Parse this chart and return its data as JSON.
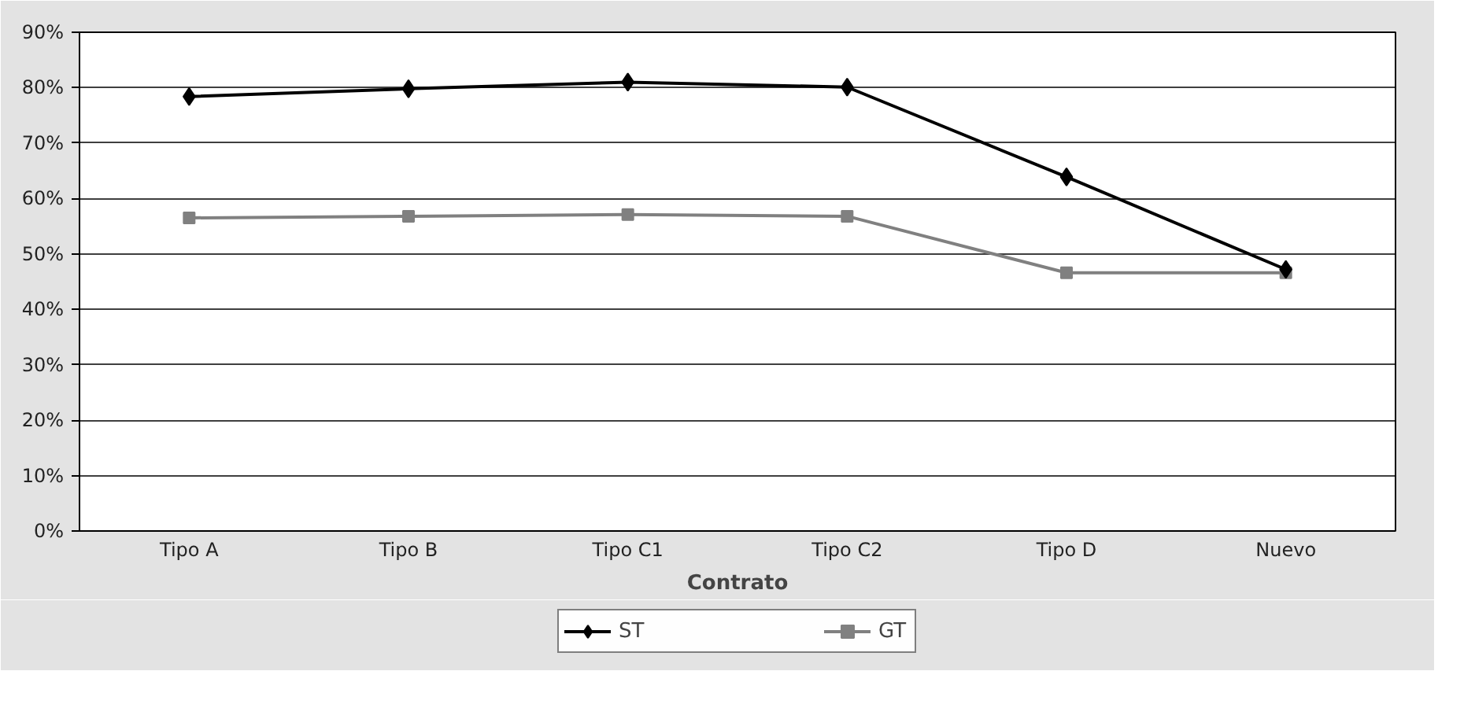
{
  "chart_data": {
    "type": "line",
    "xlabel": "Contrato",
    "categories": [
      "Tipo A",
      "Tipo B",
      "Tipo C1",
      "Tipo C2",
      "Tipo D",
      "Nuevo"
    ],
    "series": [
      {
        "name": "ST",
        "color": "#000000",
        "marker": "diamond",
        "values": [
          78.4,
          79.8,
          81.0,
          80.1,
          63.9,
          47.2
        ]
      },
      {
        "name": "GT",
        "color": "#808080",
        "marker": "square",
        "values": [
          56.5,
          56.8,
          57.1,
          56.8,
          46.6,
          46.6
        ]
      }
    ],
    "ylim": [
      0,
      90
    ],
    "yticks": [
      {
        "value": 0,
        "label": "0%"
      },
      {
        "value": 10,
        "label": "10%"
      },
      {
        "value": 20,
        "label": "20%"
      },
      {
        "value": 30,
        "label": "30%"
      },
      {
        "value": 40,
        "label": "40%"
      },
      {
        "value": 50,
        "label": "50%"
      },
      {
        "value": 60,
        "label": "60%"
      },
      {
        "value": 70,
        "label": "70%"
      },
      {
        "value": 80,
        "label": "80%"
      },
      {
        "value": 90,
        "label": "90%"
      }
    ],
    "grid": "y",
    "legend": "bottom",
    "line_style": "solid"
  }
}
